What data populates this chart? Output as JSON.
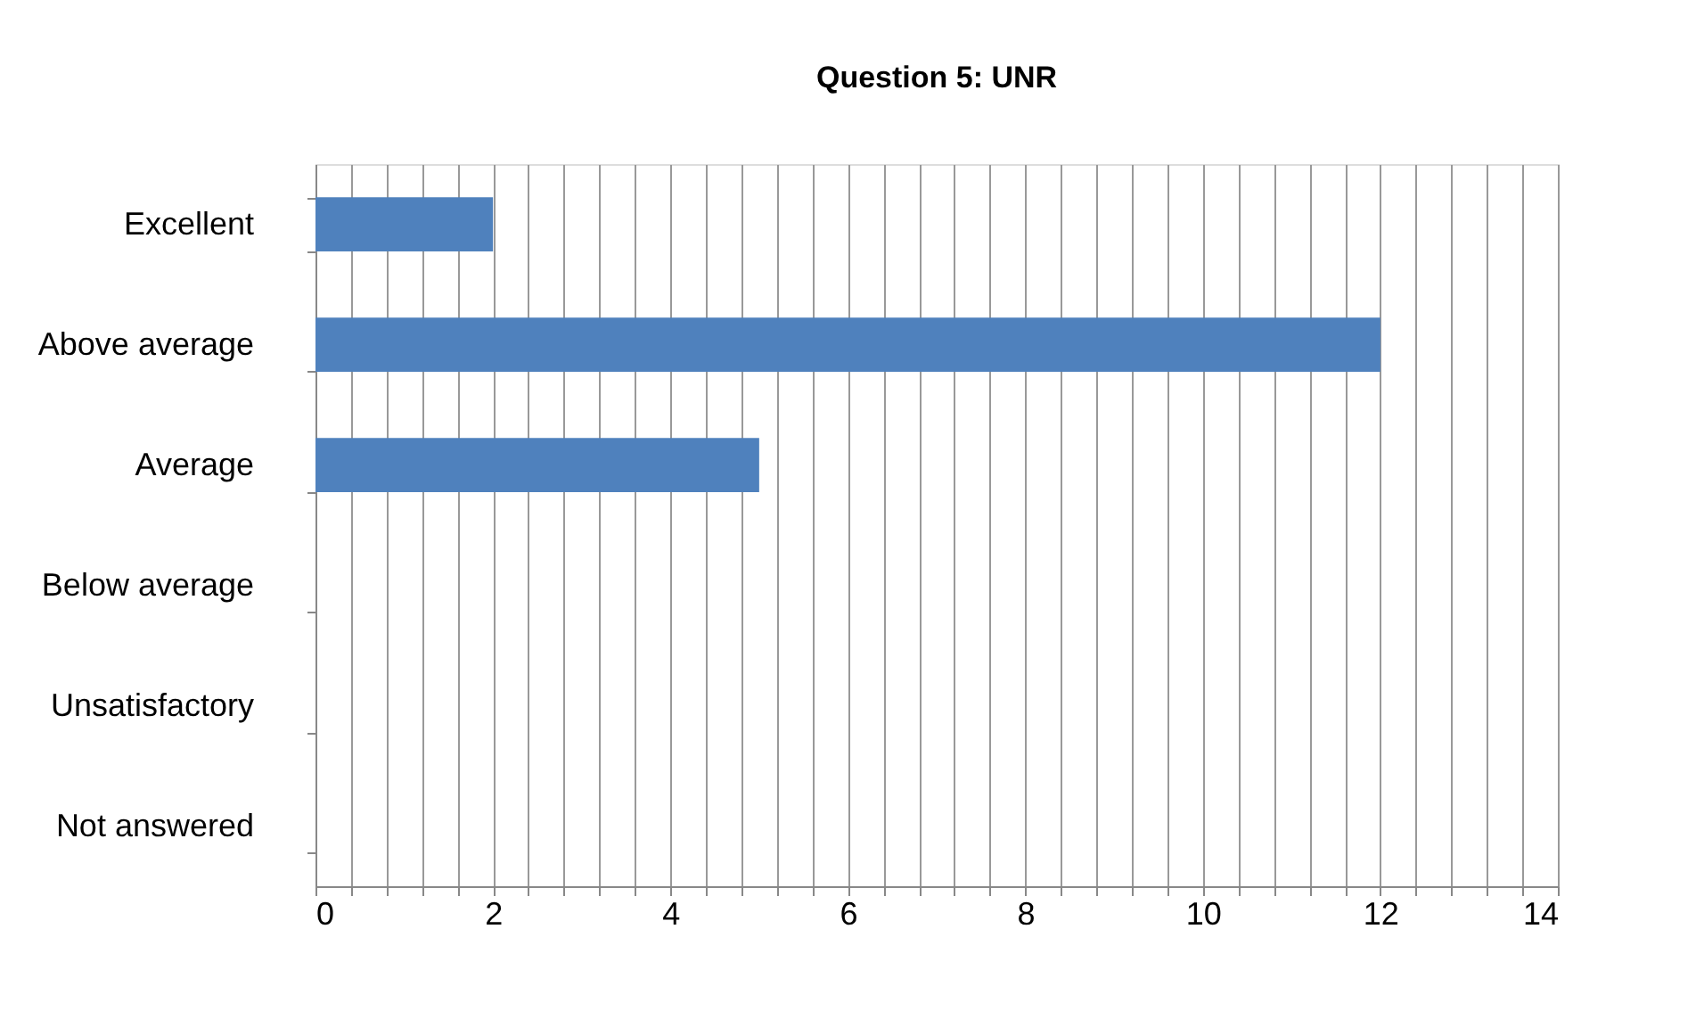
{
  "chart_data": {
    "type": "bar",
    "orientation": "horizontal",
    "title": "Question 5: UNR",
    "categories": [
      "Excellent",
      "Above average",
      "Average",
      "Below average",
      "Unsatisfactory",
      "Not answered"
    ],
    "values": [
      2,
      12,
      5,
      0,
      0,
      0
    ],
    "color": "#4f81bd",
    "xlim": [
      0,
      14
    ],
    "xticks": [
      0,
      {
        "value": 0.4,
        "label": null
      },
      {
        "value": 0.8,
        "label": null
      },
      {
        "value": 1.2,
        "label": null
      },
      {
        "value": 1.6,
        "label": null
      },
      2,
      {
        "value": 2.4,
        "label": null
      },
      {
        "value": 2.8,
        "label": null
      },
      {
        "value": 3.2,
        "label": null
      },
      {
        "value": 3.6,
        "label": null
      },
      4,
      {
        "value": 4.4,
        "label": null
      },
      {
        "value": 4.8,
        "label": null
      },
      {
        "value": 5.2,
        "label": null
      },
      {
        "value": 5.6,
        "label": null
      },
      6,
      {
        "value": 6.4,
        "label": null
      },
      {
        "value": 6.8,
        "label": null
      },
      {
        "value": 7.2,
        "label": null
      },
      {
        "value": 7.6,
        "label": null
      },
      8,
      {
        "value": 8.4,
        "label": null
      },
      {
        "value": 8.8,
        "label": null
      },
      {
        "value": 9.2,
        "label": null
      },
      {
        "value": 9.6,
        "label": null
      },
      10,
      {
        "value": 10.4,
        "label": null
      },
      {
        "value": 10.8,
        "label": null
      },
      {
        "value": 11.2,
        "label": null
      },
      {
        "value": 11.6,
        "label": null
      },
      12,
      {
        "value": 12.4,
        "label": null
      },
      {
        "value": 12.8,
        "label": null
      },
      {
        "value": 13.2,
        "label": null
      },
      {
        "value": 13.6,
        "label": null
      },
      14
    ],
    "grid": "x"
  }
}
